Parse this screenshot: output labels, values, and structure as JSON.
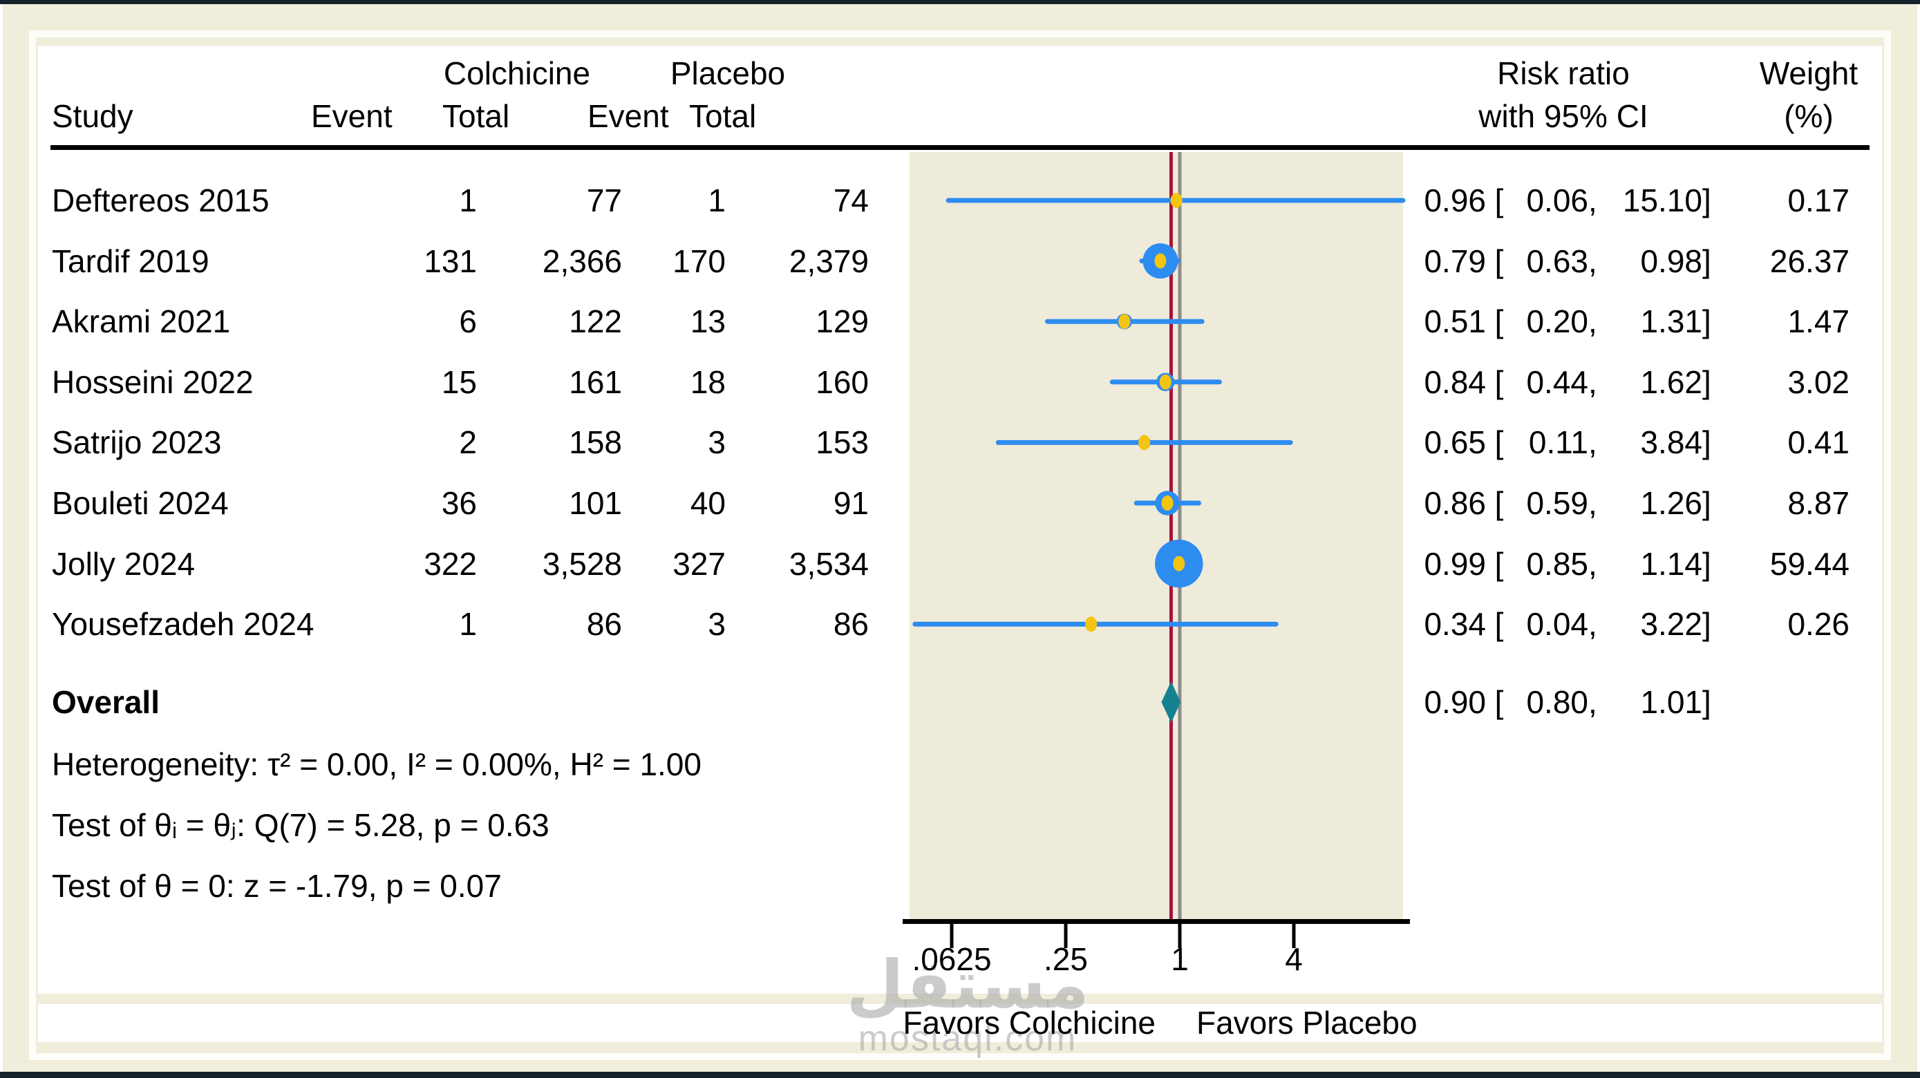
{
  "figure": {
    "header": {
      "study": "Study",
      "treatment_group": "Colchicine",
      "control_group": "Placebo",
      "event": "Event",
      "total": "Total",
      "rr_line1": "Risk ratio",
      "rr_line2": "with 95% CI",
      "weight_line1": "Weight",
      "weight_line2": "(%)"
    },
    "rr_format": {
      "open": "[",
      "comma": ",",
      "close": "]"
    },
    "studies": [
      {
        "name": "Deftereos 2015",
        "c_event": "1",
        "c_total": "77",
        "p_event": "1",
        "p_total": "74",
        "est": "0.96",
        "low": "0.06",
        "high": "15.10",
        "weight": "0.17"
      },
      {
        "name": "Tardif 2019",
        "c_event": "131",
        "c_total": "2,366",
        "p_event": "170",
        "p_total": "2,379",
        "est": "0.79",
        "low": "0.63",
        "high": "0.98",
        "weight": "26.37"
      },
      {
        "name": "Akrami 2021",
        "c_event": "6",
        "c_total": "122",
        "p_event": "13",
        "p_total": "129",
        "est": "0.51",
        "low": "0.20",
        "high": "1.31",
        "weight": "1.47"
      },
      {
        "name": "Hosseini 2022",
        "c_event": "15",
        "c_total": "161",
        "p_event": "18",
        "p_total": "160",
        "est": "0.84",
        "low": "0.44",
        "high": "1.62",
        "weight": "3.02"
      },
      {
        "name": "Satrijo 2023",
        "c_event": "2",
        "c_total": "158",
        "p_event": "3",
        "p_total": "153",
        "est": "0.65",
        "low": "0.11",
        "high": "3.84",
        "weight": "0.41"
      },
      {
        "name": "Bouleti 2024",
        "c_event": "36",
        "c_total": "101",
        "p_event": "40",
        "p_total": "91",
        "est": "0.86",
        "low": "0.59",
        "high": "1.26",
        "weight": "8.87"
      },
      {
        "name": "Jolly 2024",
        "c_event": "322",
        "c_total": "3,528",
        "p_event": "327",
        "p_total": "3,534",
        "est": "0.99",
        "low": "0.85",
        "high": "1.14",
        "weight": "59.44"
      },
      {
        "name": "Yousefzadeh 2024",
        "c_event": "1",
        "c_total": "86",
        "p_event": "3",
        "p_total": "86",
        "est": "0.34",
        "low": "0.04",
        "high": "3.22",
        "weight": "0.26"
      }
    ],
    "overall": {
      "label": "Overall",
      "est": "0.90",
      "low": "0.80",
      "high": "1.01"
    },
    "stats": [
      "Heterogeneity: τ² = 0.00, I² = 0.00%, H² = 1.00",
      "Test of θᵢ = θⱼ: Q(7) = 5.28, p = 0.63",
      "Test of θ = 0: z = -1.79, p = 0.07"
    ],
    "axis": {
      "tick_labels": [
        ".0625",
        ".25",
        "1",
        "4"
      ]
    },
    "favors": {
      "left": "Favors Colchicine",
      "right": "Favors Placebo"
    },
    "watermark": {
      "line1": "مستقل",
      "line2": "mostaql.com"
    }
  },
  "colors": {
    "ci_blue": "#2D8CF0",
    "marker_yellow": "#F3C411",
    "overall_line_red": "#A8123A",
    "null_line_gray": "#8C8C8C",
    "diamond_teal": "#15808F",
    "plot_bg": "#EFEBDA",
    "page_bg": "#F0EDDB",
    "frame_dark": "#16212B",
    "axis_black": "#000000"
  },
  "chart_data": {
    "type": "scatter",
    "subtype": "forest-plot",
    "title": "",
    "xlabel_left": "Favors Colchicine",
    "xlabel_right": "Favors Placebo",
    "x_scale": "log",
    "x_ticks": [
      0.0625,
      0.25,
      1,
      4
    ],
    "x_tick_labels": [
      ".0625",
      ".25",
      "1",
      "4"
    ],
    "x_range_visible": [
      0.036,
      13.8
    ],
    "null_line_x": 1,
    "overall_line_x": 0.9,
    "grid": false,
    "legend": false,
    "studies": [
      {
        "label": "Deftereos 2015",
        "events_treat": 1,
        "total_treat": 77,
        "events_ctrl": 1,
        "total_ctrl": 74,
        "rr": 0.96,
        "ci_low": 0.06,
        "ci_high": 15.1,
        "weight_pct": 0.17
      },
      {
        "label": "Tardif 2019",
        "events_treat": 131,
        "total_treat": 2366,
        "events_ctrl": 170,
        "total_ctrl": 2379,
        "rr": 0.79,
        "ci_low": 0.63,
        "ci_high": 0.98,
        "weight_pct": 26.37
      },
      {
        "label": "Akrami 2021",
        "events_treat": 6,
        "total_treat": 122,
        "events_ctrl": 13,
        "total_ctrl": 129,
        "rr": 0.51,
        "ci_low": 0.2,
        "ci_high": 1.31,
        "weight_pct": 1.47
      },
      {
        "label": "Hosseini 2022",
        "events_treat": 15,
        "total_treat": 161,
        "events_ctrl": 18,
        "total_ctrl": 160,
        "rr": 0.84,
        "ci_low": 0.44,
        "ci_high": 1.62,
        "weight_pct": 3.02
      },
      {
        "label": "Satrijo 2023",
        "events_treat": 2,
        "total_treat": 158,
        "events_ctrl": 3,
        "total_ctrl": 153,
        "rr": 0.65,
        "ci_low": 0.11,
        "ci_high": 3.84,
        "weight_pct": 0.41
      },
      {
        "label": "Bouleti 2024",
        "events_treat": 36,
        "total_treat": 101,
        "events_ctrl": 40,
        "total_ctrl": 91,
        "rr": 0.86,
        "ci_low": 0.59,
        "ci_high": 1.26,
        "weight_pct": 8.87
      },
      {
        "label": "Jolly 2024",
        "events_treat": 322,
        "total_treat": 3528,
        "events_ctrl": 327,
        "total_ctrl": 3534,
        "rr": 0.99,
        "ci_low": 0.85,
        "ci_high": 1.14,
        "weight_pct": 59.44
      },
      {
        "label": "Yousefzadeh 2024",
        "events_treat": 1,
        "total_treat": 86,
        "events_ctrl": 3,
        "total_ctrl": 86,
        "rr": 0.34,
        "ci_low": 0.04,
        "ci_high": 3.22,
        "weight_pct": 0.26
      }
    ],
    "overall": {
      "rr": 0.9,
      "ci_low": 0.8,
      "ci_high": 1.01
    },
    "heterogeneity": {
      "tau2": 0.0,
      "I2_pct": 0.0,
      "H2": 1.0,
      "Q_df": 7,
      "Q": 5.28,
      "p_Q": 0.63,
      "z": -1.79,
      "p_z": 0.07
    }
  }
}
